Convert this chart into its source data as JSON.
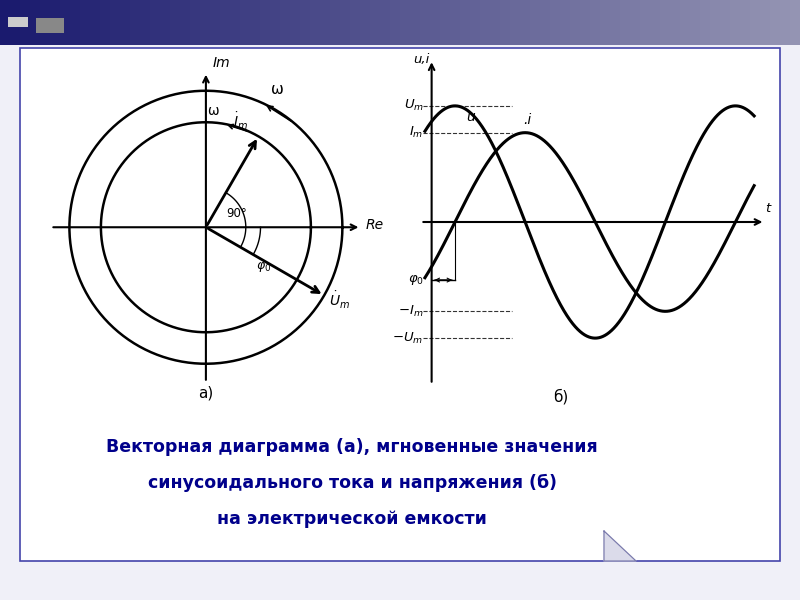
{
  "bg_color": "#f0f0f8",
  "inner_bg": "#ffffff",
  "border_color": "#4444aa",
  "border_linewidth": 1.2,
  "header_color_left": "#1a1a6e",
  "header_color_right": "#8888bb",
  "title_line1": "Векторная диаграмма (а), мгновенные значения",
  "title_line2": "синусоидального тока и напряжения (б)",
  "title_line3": "на электрической емкости",
  "title_color": "#00008B",
  "title_fontsize": 12.5,
  "Um": 1.3,
  "Im": 1.0,
  "phi0_deg": -30,
  "a_label": "а)",
  "b_label": "б)"
}
